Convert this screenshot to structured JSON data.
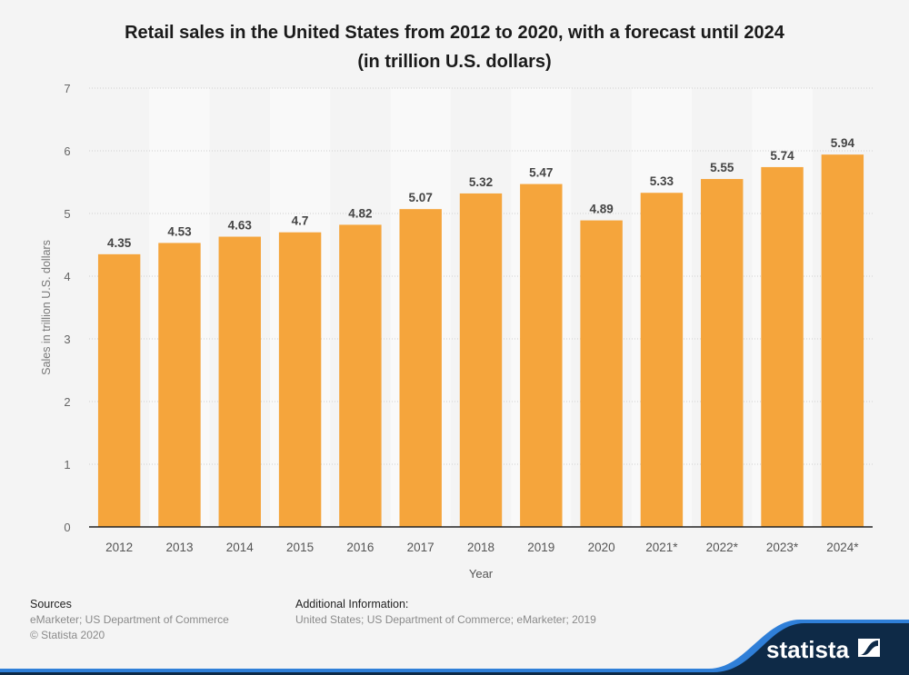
{
  "chart_data": {
    "type": "bar",
    "title": "Retail sales in the United States from 2012 to 2020, with a forecast until 2024",
    "subtitle": "(in trillion U.S. dollars)",
    "xlabel": "Year",
    "ylabel": "Sales in trillion U.S. dollars",
    "categories": [
      "2012",
      "2013",
      "2014",
      "2015",
      "2016",
      "2017",
      "2018",
      "2019",
      "2020",
      "2021*",
      "2022*",
      "2023*",
      "2024*"
    ],
    "values": [
      4.35,
      4.53,
      4.63,
      4.7,
      4.82,
      5.07,
      5.32,
      5.47,
      4.89,
      5.33,
      5.55,
      5.74,
      5.94
    ],
    "value_labels": [
      "4.35",
      "4.53",
      "4.63",
      "4.7",
      "4.82",
      "5.07",
      "5.32",
      "5.47",
      "4.89",
      "5.33",
      "5.55",
      "5.74",
      "5.94"
    ],
    "ylim": [
      0,
      7
    ],
    "yticks": [
      0,
      1,
      2,
      3,
      4,
      5,
      6,
      7
    ],
    "grid": true,
    "bar_color": "#f5a53c",
    "legend": "none"
  },
  "footer": {
    "sources_heading": "Sources",
    "sources_text": "eMarketer; US Department of Commerce",
    "copyright": "© Statista 2020",
    "additional_heading": "Additional Information:",
    "additional_text": "United States; US Department of Commerce; eMarketer; 2019"
  },
  "brand": {
    "name": "statista",
    "color": "#0e2a47",
    "accent": "#2f7fd8"
  }
}
